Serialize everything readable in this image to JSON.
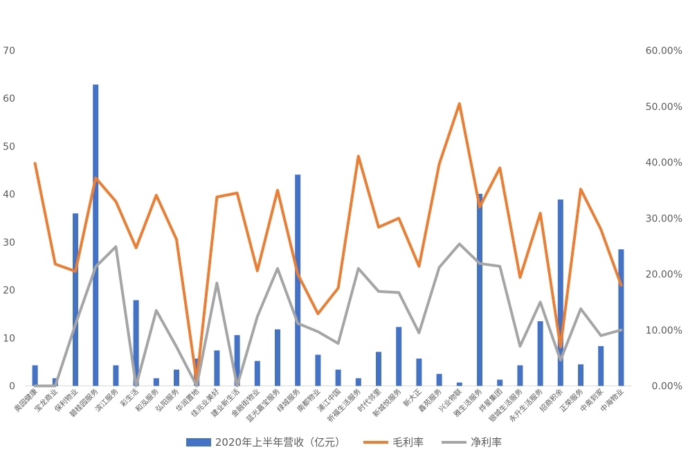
{
  "chart_data": {
    "type": "bar",
    "categories": [
      "奥园健康",
      "宝龙商业",
      "保利物业",
      "碧桂园服务",
      "滨江服务",
      "彩生活",
      "和泓服务",
      "弘阳服务",
      "华润置地",
      "佳兆业美好",
      "建业新生活",
      "金融街物业",
      "蓝光嘉宝服务",
      "绿城服务",
      "南都物业",
      "浦江中国",
      "祈福生活服务",
      "时代邻里",
      "新城悦服务",
      "新大正",
      "鑫苑服务",
      "兴业物联",
      "雅生活服务",
      "烨星集团",
      "银城生活服务",
      "永升生活服务",
      "招商积余",
      "正荣服务",
      "中奥到家",
      "中海物业"
    ],
    "series": [
      {
        "name": "2020年上半年营收（亿元）",
        "type": "bar",
        "axis": "left",
        "color": "#4472C4",
        "values": [
          4.3,
          1.6,
          36.0,
          62.9,
          4.3,
          17.9,
          1.6,
          3.4,
          5.7,
          7.4,
          10.6,
          5.2,
          11.8,
          44.1,
          6.5,
          3.4,
          1.6,
          7.1,
          12.3,
          5.7,
          2.5,
          0.7,
          40.1,
          1.3,
          4.3,
          13.5,
          38.9,
          4.5,
          8.3,
          28.5
        ]
      },
      {
        "name": "毛利率",
        "type": "line",
        "axis": "right",
        "color": "#ED7D31",
        "values": [
          0.398,
          0.218,
          0.205,
          0.372,
          0.33,
          0.247,
          0.341,
          0.262,
          0.008,
          0.338,
          0.345,
          0.206,
          0.35,
          0.2,
          0.129,
          0.175,
          0.411,
          0.284,
          0.3,
          0.214,
          0.397,
          0.505,
          0.32,
          0.39,
          0.194,
          0.309,
          0.07,
          0.352,
          0.28,
          0.18
        ]
      },
      {
        "name": "净利率",
        "type": "line",
        "axis": "right",
        "color": "#A5A5A5",
        "values": [
          0.0,
          0.0,
          0.11,
          0.213,
          0.249,
          0.0,
          0.135,
          0.07,
          0.0,
          0.184,
          0.0,
          0.124,
          0.21,
          0.112,
          0.097,
          0.076,
          0.21,
          0.169,
          0.167,
          0.095,
          0.212,
          0.254,
          0.219,
          0.214,
          0.071,
          0.15,
          0.046,
          0.138,
          0.09,
          0.1
        ]
      }
    ],
    "y_left": {
      "min": 0,
      "max": 70,
      "ticks": [
        "0",
        "10",
        "20",
        "30",
        "40",
        "50",
        "60",
        "70"
      ]
    },
    "y_right": {
      "min": 0,
      "max": 0.6,
      "ticks": [
        "0.00%",
        "10.00%",
        "20.00%",
        "30.00%",
        "40.00%",
        "50.00%",
        "60.00%"
      ]
    },
    "grid": false,
    "legend_position": "bottom"
  }
}
